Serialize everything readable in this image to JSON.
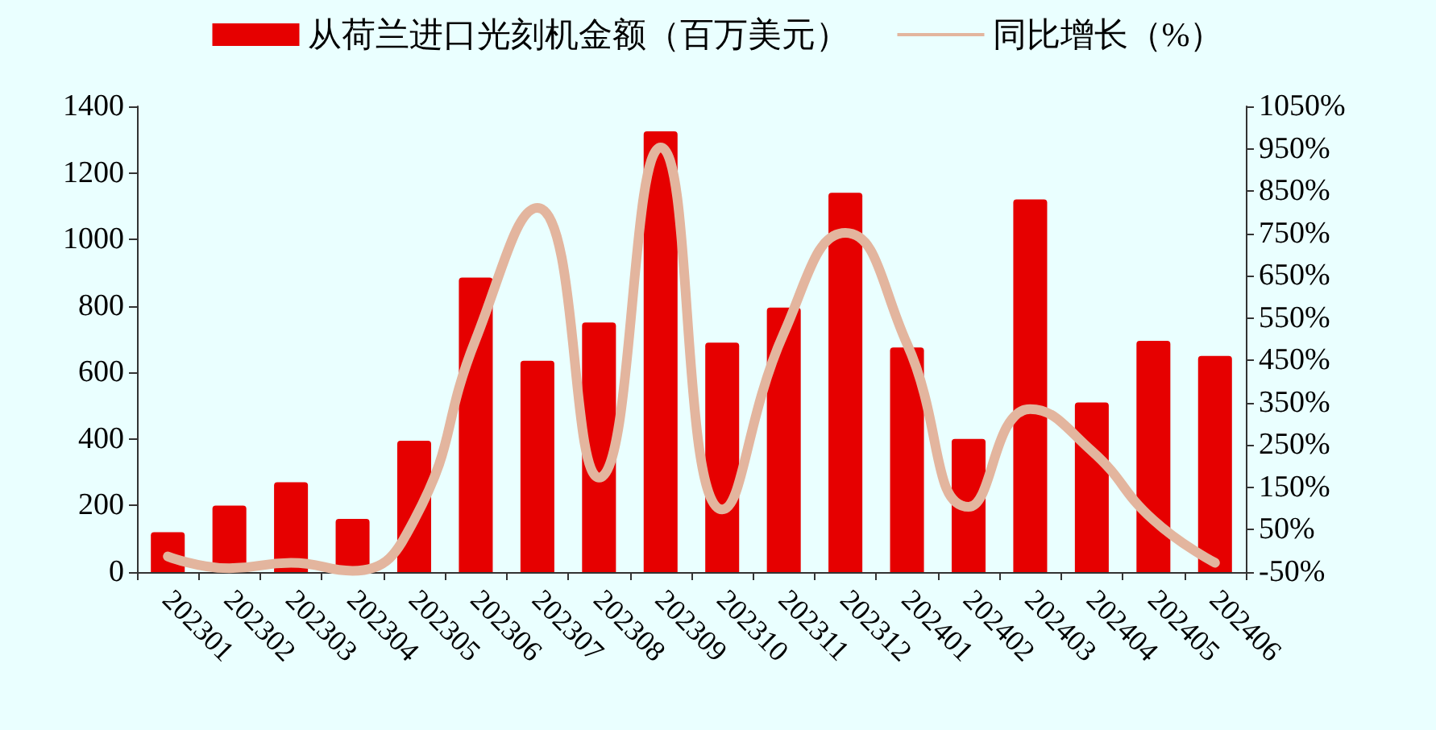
{
  "chart_data": {
    "type": "bar",
    "categories": [
      "202301",
      "202302",
      "202303",
      "202304",
      "202305",
      "202306",
      "202307",
      "202308",
      "202309",
      "202310",
      "202311",
      "202312",
      "202401",
      "202402",
      "202403",
      "202404",
      "202405",
      "202406"
    ],
    "series": [
      {
        "name": "从荷兰进口光刻机金额（百万美元）",
        "color": "#e60000",
        "values": [
          120,
          200,
          270,
          160,
          395,
          885,
          635,
          750,
          1325,
          690,
          795,
          1140,
          675,
          400,
          1120,
          510,
          695,
          650
        ]
      },
      {
        "name": "同比增长（%）",
        "type": "line",
        "axis": "y2",
        "color": "#e3b59e",
        "values": [
          -13,
          -41,
          -28,
          -47,
          73,
          500,
          810,
          173,
          953,
          98,
          514,
          751,
          489,
          104,
          335,
          236,
          73,
          -28
        ]
      }
    ],
    "ylim": [
      0,
      1400
    ],
    "yticks": [
      0,
      200,
      400,
      600,
      800,
      1000,
      1200,
      1400
    ],
    "y2lim": [
      -50,
      1050
    ],
    "y2ticks": [
      {
        "value": -50,
        "label": "-50%"
      },
      {
        "value": 50,
        "label": "50%"
      },
      {
        "value": 150,
        "label": "150%"
      },
      {
        "value": 250,
        "label": "250%"
      },
      {
        "value": 350,
        "label": "350%"
      },
      {
        "value": 450,
        "label": "450%"
      },
      {
        "value": 550,
        "label": "550%"
      },
      {
        "value": 650,
        "label": "650%"
      },
      {
        "value": 750,
        "label": "750%"
      },
      {
        "value": 850,
        "label": "850%"
      },
      {
        "value": 950,
        "label": "950%"
      },
      {
        "value": 1050,
        "label": "1050%"
      }
    ],
    "grid": false,
    "legend": "top",
    "marker": "none"
  }
}
